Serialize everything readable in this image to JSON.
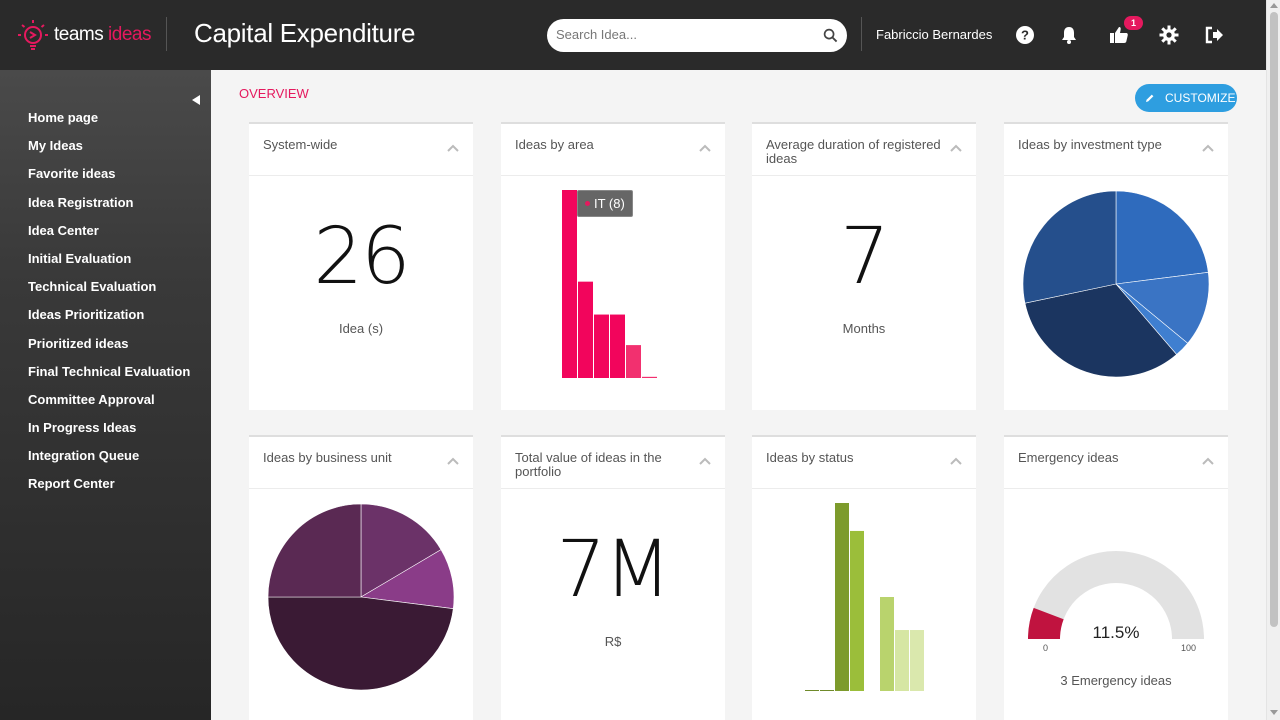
{
  "header": {
    "logo_word1": "teams",
    "logo_word2": "ideas",
    "title": "Capital Expenditure",
    "search_placeholder": "Search Idea...",
    "user_name": "Fabriccio Bernardes",
    "likes_badge": "1",
    "icons": [
      "help-icon",
      "bell-icon",
      "thumbs-up-icon",
      "gear-icon",
      "logout-icon"
    ]
  },
  "sidebar": {
    "items": [
      {
        "label": "Home page"
      },
      {
        "label": "My Ideas"
      },
      {
        "label": "Favorite ideas"
      },
      {
        "label": "Idea Registration"
      },
      {
        "label": "Idea Center"
      },
      {
        "label": "Initial Evaluation"
      },
      {
        "label": "Technical Evaluation"
      },
      {
        "label": "Ideas Prioritization"
      },
      {
        "label": "Prioritized ideas"
      },
      {
        "label": "Final Technical Evaluation"
      },
      {
        "label": "Committee Approval"
      },
      {
        "label": "In Progress Ideas"
      },
      {
        "label": "Integration Queue"
      },
      {
        "label": "Report Center"
      }
    ]
  },
  "main": {
    "section_title": "OVERVIEW",
    "customize_label": "CUSTOMIZE",
    "cards": {
      "system_wide": {
        "title": "System-wide",
        "value": "26",
        "unit": "Idea (s)"
      },
      "ideas_by_area": {
        "title": "Ideas by area",
        "tooltip": "IT (8)"
      },
      "avg_duration": {
        "title": "Average duration of registered ideas",
        "value": "7",
        "unit": "Months"
      },
      "ideas_by_investment": {
        "title": "Ideas by investment type"
      },
      "ideas_by_business_unit": {
        "title": "Ideas by business unit"
      },
      "total_value": {
        "title": "Total value of ideas in the portfolio",
        "value": "7M",
        "unit": "R$"
      },
      "ideas_by_status": {
        "title": "Ideas by status"
      },
      "emergency": {
        "title": "Emergency ideas",
        "gauge_value": "11.5%",
        "gauge_min": "0",
        "gauge_max": "100",
        "caption": "3 Emergency ideas"
      }
    }
  },
  "colors": {
    "accent": "#e5195e",
    "customize_button": "#2e9ee0",
    "header_bg": "#2a2a2a"
  },
  "chart_data": [
    {
      "chart": "ideas_by_area",
      "type": "bar",
      "tooltip_category": "IT",
      "values": [
        8,
        4.1,
        2.7,
        2.7,
        1.4,
        0.05
      ],
      "colors": [
        "#f2055c",
        "#f2055c",
        "#f2055c",
        "#f2055c",
        "#f2306f",
        "#f2306f"
      ]
    },
    {
      "chart": "ideas_by_investment_type",
      "type": "pie",
      "values": [
        23,
        13,
        2.7,
        33,
        28.3
      ],
      "colors": [
        "#2f6bbd",
        "#3a74c4",
        "#3f7fd0",
        "#1b3560",
        "#254f8c"
      ]
    },
    {
      "chart": "ideas_by_business_unit",
      "type": "pie",
      "values": [
        16.5,
        10.5,
        48,
        25
      ],
      "colors": [
        "#6b3268",
        "#8a3c88",
        "#3a1a34",
        "#5a2953"
      ]
    },
    {
      "chart": "ideas_by_status",
      "type": "bar",
      "values": [
        0.02,
        0.02,
        7.4,
        6.3,
        0,
        3.7,
        2.4,
        2.4
      ],
      "colors": [
        "#6f8a2a",
        "#6f8a2a",
        "#7d9b2c",
        "#9bbe3a",
        "#b9d36d",
        "#b9d36d",
        "#d6e6a3",
        "#dae8ad"
      ]
    },
    {
      "chart": "emergency_ideas",
      "type": "gauge",
      "value": 11.5,
      "min": 0,
      "max": 100
    }
  ]
}
